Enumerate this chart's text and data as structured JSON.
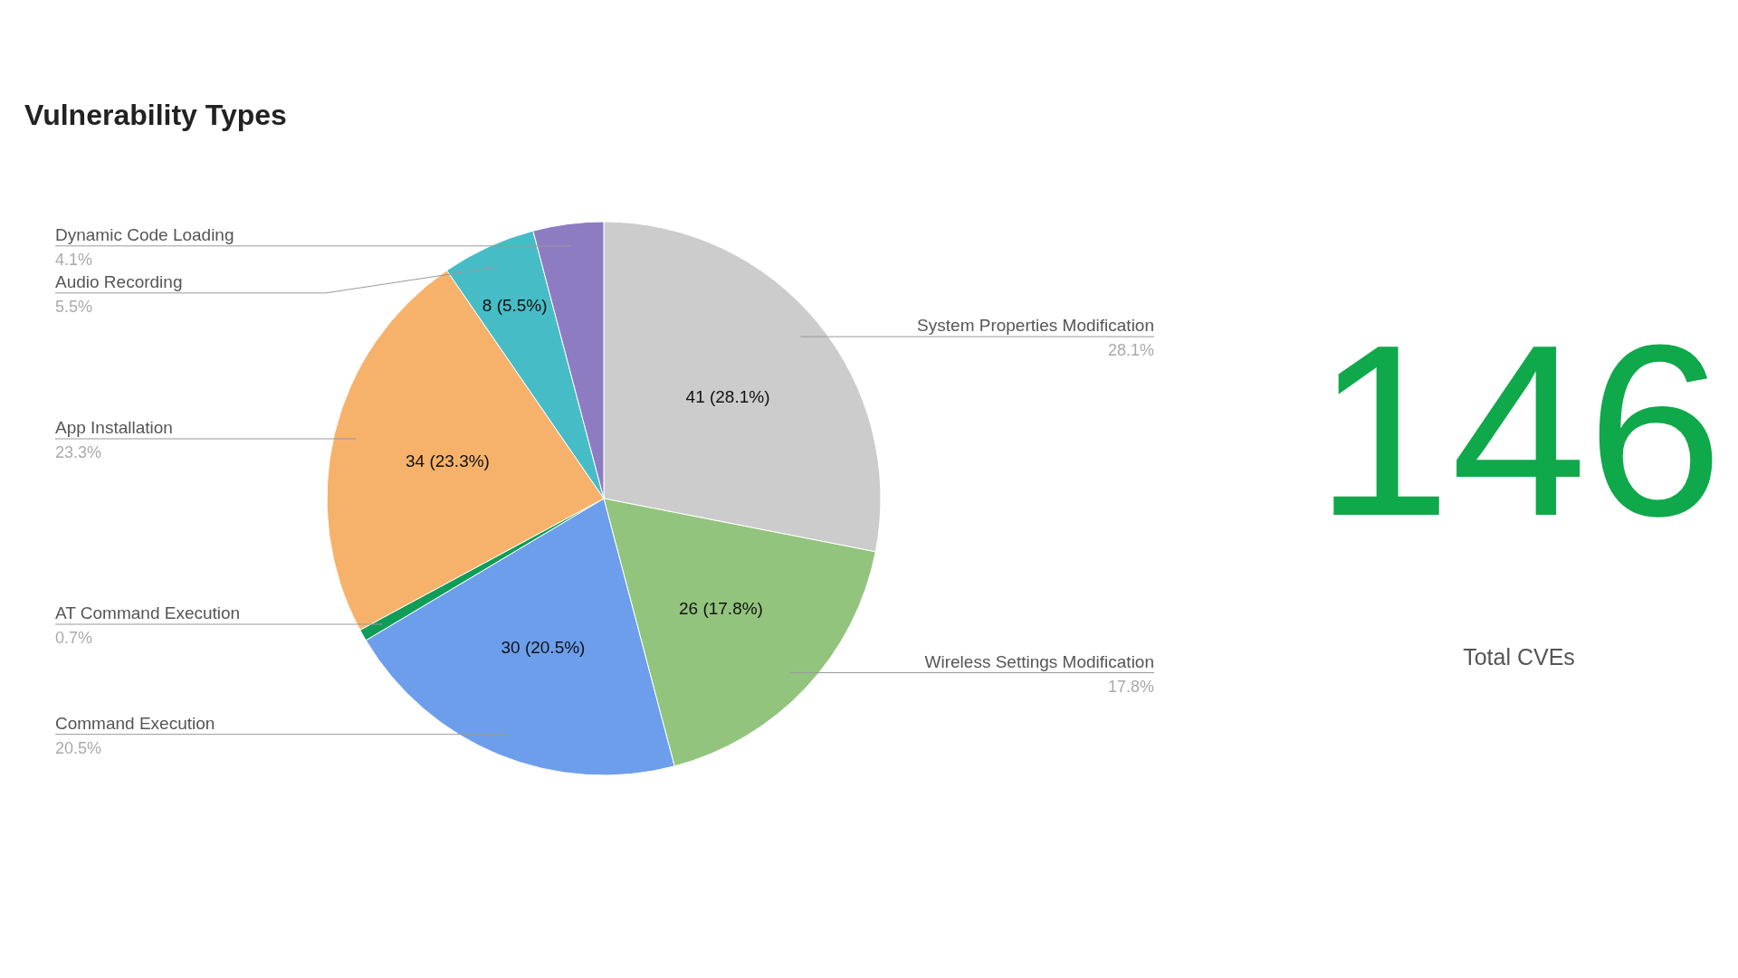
{
  "chart_data": [
    {
      "type": "pie",
      "title": "Vulnerability Types",
      "categories": [
        "System Properties Modification",
        "Wireless Settings Modification",
        "Command Execution",
        "AT Command Execution",
        "App Installation",
        "Audio Recording",
        "Dynamic Code Loading"
      ],
      "values": [
        41,
        26,
        30,
        1,
        34,
        8,
        6
      ],
      "colors": [
        "#cccccc",
        "#93c47d",
        "#6d9eeb",
        "#0f9d58",
        "#f6b26b",
        "#46bdc6",
        "#8e7cc3"
      ],
      "value_labels": [
        "41 (28.1%)",
        "26 (17.8%)",
        "30 (20.5%)",
        null,
        "34 (23.3%)",
        "8 (5.5%)",
        null
      ],
      "annotations": [
        {
          "text": "28.1%",
          "x": "System Properties Modification"
        },
        {
          "text": "17.8%",
          "x": "Wireless Settings Modification"
        },
        {
          "text": "20.5%",
          "x": "Command Execution"
        },
        {
          "text": "0.7%",
          "x": "AT Command Execution"
        },
        {
          "text": "23.3%",
          "x": "App Installation"
        },
        {
          "text": "5.5%",
          "x": "Audio Recording"
        },
        {
          "text": "4.1%",
          "x": "Dynamic Code Loading"
        }
      ]
    },
    {
      "type": "other",
      "values": [
        146
      ],
      "value_labels": [
        "146"
      ],
      "color": "#0fa84a",
      "annotations": [
        "Total CVEs"
      ]
    }
  ]
}
